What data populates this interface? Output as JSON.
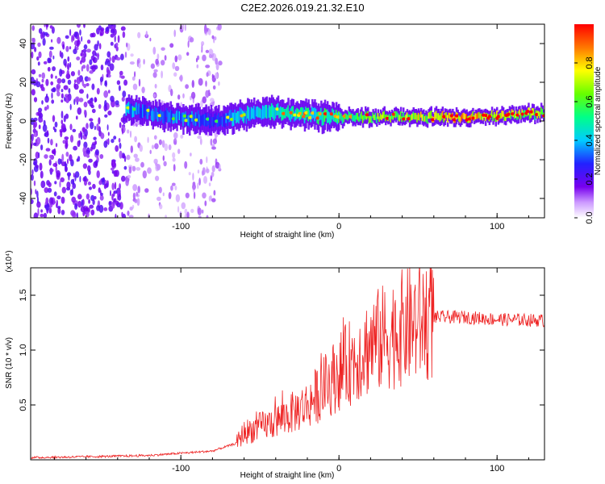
{
  "title": "C2E2.2026.019.21.32.E10",
  "chart_data": [
    {
      "type": "heatmap",
      "xlabel": "Height of straight line (km)",
      "ylabel": "Frequency (Hz)",
      "xlim": [
        -195,
        130
      ],
      "ylim": [
        -50,
        50
      ],
      "xticks": [
        -100,
        0,
        100
      ],
      "xtick_labels": [
        "-100",
        "0",
        "100"
      ],
      "yticks": [
        -40,
        -20,
        0,
        20,
        40
      ],
      "ytick_labels": [
        "-40",
        "-20",
        "0",
        "20",
        "40"
      ],
      "colorbar": {
        "label": "Normalized spectral amplitude",
        "range": [
          0,
          1
        ],
        "ticks": [
          0.0,
          0.2,
          0.4,
          0.6,
          0.8
        ],
        "tick_labels": [
          "0.0",
          "0.2",
          "0.4",
          "0.6",
          "0.8"
        ]
      },
      "ridge": {
        "x": [
          -135,
          -120,
          -100,
          -80,
          -60,
          -40,
          -20,
          0,
          40,
          80,
          130
        ],
        "center_freq": [
          6,
          4,
          2,
          0,
          3,
          5,
          3,
          2,
          2,
          2,
          4
        ],
        "amplitude": [
          0.4,
          0.35,
          0.4,
          0.3,
          0.45,
          0.5,
          0.55,
          0.6,
          0.75,
          0.9,
          0.7
        ]
      },
      "noise_region": {
        "x_range": [
          -195,
          -75
        ],
        "amplitude": 0.15
      }
    },
    {
      "type": "line",
      "xlabel": "Height of straight line (km)",
      "ylabel": "SNR (10 * v/v)",
      "scale_label": "(x10⁴)",
      "xlim": [
        -195,
        130
      ],
      "ylim": [
        0,
        1.75
      ],
      "xticks": [
        -100,
        0,
        100
      ],
      "xtick_labels": [
        "-100",
        "0",
        "100"
      ],
      "yticks": [
        0.5,
        1.0,
        1.5
      ],
      "ytick_labels": [
        "0.5",
        "1.0",
        "1.5"
      ],
      "series": [
        {
          "name": "SNR",
          "color": "#ee2222",
          "x": [
            -195,
            -150,
            -120,
            -100,
            -80,
            -65,
            -60,
            -40,
            -20,
            0,
            20,
            40,
            60,
            80,
            100,
            130
          ],
          "y": [
            0.02,
            0.03,
            0.04,
            0.06,
            0.08,
            0.15,
            0.25,
            0.35,
            0.5,
            0.8,
            1.05,
            1.2,
            1.3,
            1.3,
            1.28,
            1.27
          ]
        }
      ]
    }
  ]
}
